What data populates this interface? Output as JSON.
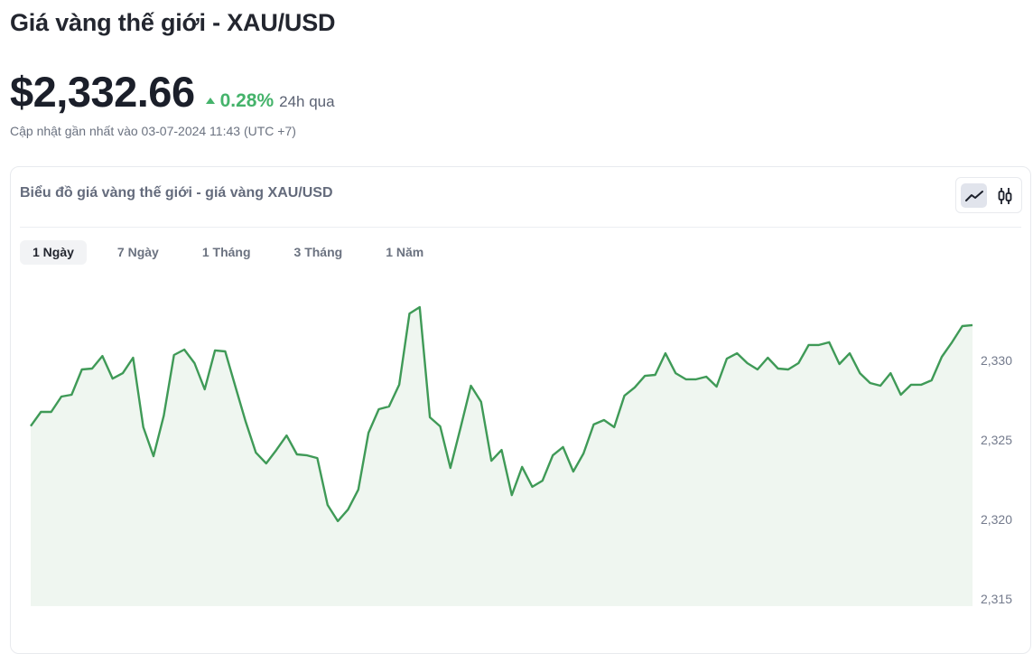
{
  "header": {
    "title": "Giá vàng thế giới - XAU/USD",
    "price": "$2,332.66",
    "change": "0.28%",
    "change_direction": "up",
    "change_period": "24h qua",
    "updated": "Cập nhật gần nhất vào 03-07-2024 11:43 (UTC +7)"
  },
  "card": {
    "title": "Biểu đồ giá vàng thế giới - giá vàng XAU/USD",
    "chart_types": [
      {
        "icon": "line-chart-icon",
        "active": true
      },
      {
        "icon": "candlestick-icon",
        "active": false
      }
    ],
    "tabs": [
      {
        "label": "1 Ngày",
        "active": true
      },
      {
        "label": "7 Ngày",
        "active": false
      },
      {
        "label": "1 Tháng",
        "active": false
      },
      {
        "label": "3 Tháng",
        "active": false
      },
      {
        "label": "1 Năm",
        "active": false
      }
    ]
  },
  "colors": {
    "up": "#45b36b",
    "line": "#3f9a57",
    "fill": "#eff6f0"
  },
  "chart_data": {
    "type": "area",
    "title": "",
    "xlabel": "",
    "ylabel": "",
    "y_axis_position": "right",
    "grid": false,
    "ylim": [
      2314.5,
      2335.6
    ],
    "yticks": [
      2315,
      2320,
      2325,
      2330
    ],
    "ytick_labels": [
      "2,315",
      "2,320",
      "2,325",
      "2,330"
    ],
    "values": [
      2325.87,
      2326.76,
      2326.76,
      2327.73,
      2327.84,
      2329.43,
      2329.49,
      2330.28,
      2328.86,
      2329.2,
      2330.17,
      2325.8,
      2323.98,
      2326.53,
      2330.34,
      2330.68,
      2329.83,
      2328.18,
      2330.63,
      2330.57,
      2328.35,
      2326.14,
      2324.2,
      2323.52,
      2324.37,
      2325.28,
      2324.09,
      2324.03,
      2323.86,
      2320.91,
      2319.89,
      2320.62,
      2321.87,
      2325.45,
      2326.93,
      2327.1,
      2328.47,
      2332.95,
      2333.35,
      2326.42,
      2325.85,
      2323.24,
      2325.8,
      2328.41,
      2327.39,
      2323.69,
      2324.37,
      2321.53,
      2323.3,
      2322.05,
      2322.44,
      2324.03,
      2324.55,
      2323.01,
      2324.15,
      2325.97,
      2326.25,
      2325.8,
      2327.78,
      2328.3,
      2329.03,
      2329.09,
      2330.45,
      2329.2,
      2328.81,
      2328.81,
      2328.98,
      2328.35,
      2330.11,
      2330.45,
      2329.83,
      2329.43,
      2330.17,
      2329.49,
      2329.43,
      2329.83,
      2330.97,
      2330.97,
      2331.14,
      2329.77,
      2330.45,
      2329.2,
      2328.58,
      2328.41,
      2329.2,
      2327.84,
      2328.47,
      2328.47,
      2328.75,
      2330.23,
      2331.14,
      2332.16,
      2332.22
    ]
  }
}
